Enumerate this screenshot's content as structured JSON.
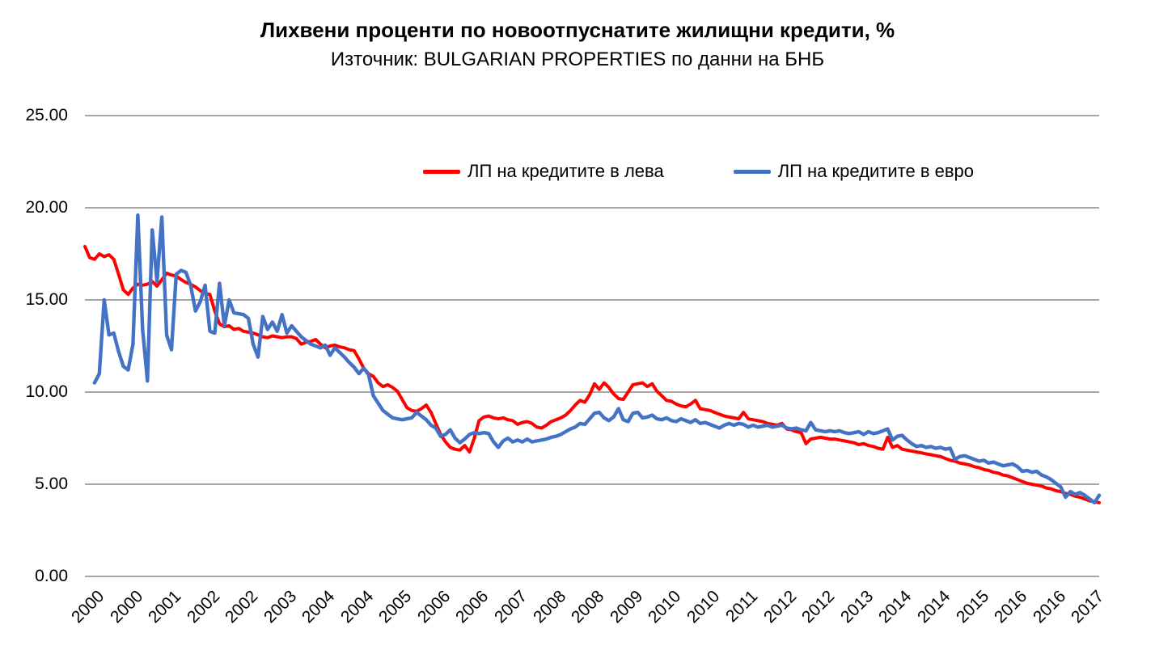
{
  "chart_data": {
    "type": "line",
    "title": "Лихвени проценти по новоотпуснатите жилищни кредити, %",
    "subtitle": "Източник: BULGARIAN PROPERTIES по данни на БНБ",
    "ylabel": "",
    "xlabel": "",
    "ylim": [
      0,
      25
    ],
    "y_tick_step": 5,
    "y_tick_labels": [
      "0.00",
      "5.00",
      "10.00",
      "15.00",
      "20.00",
      "25.00"
    ],
    "grid": "horizontal",
    "gridline_color": "#A6A6A6",
    "legend_position": "top-center",
    "x_start_month": "2000-01",
    "x_end_month": "2017-08",
    "x_tick_every_months": 8,
    "x_tick_labels": [
      "2000",
      "2000",
      "2001",
      "2002",
      "2002",
      "2003",
      "2004",
      "2004",
      "2005",
      "2006",
      "2006",
      "2007",
      "2008",
      "2008",
      "2009",
      "2010",
      "2010",
      "2011",
      "2012",
      "2012",
      "2013",
      "2014",
      "2014",
      "2015",
      "2016",
      "2016",
      "2017"
    ],
    "series": [
      {
        "name": "ЛП на кредитите в лева",
        "color": "#FF0000",
        "values": [
          17.9,
          17.3,
          17.2,
          17.5,
          17.35,
          17.45,
          17.2,
          16.4,
          15.55,
          15.3,
          15.65,
          15.85,
          15.8,
          15.85,
          16.0,
          15.75,
          16.1,
          16.45,
          16.35,
          16.3,
          16.1,
          15.95,
          15.85,
          15.7,
          15.5,
          15.35,
          15.3,
          14.4,
          13.7,
          13.55,
          13.6,
          13.4,
          13.45,
          13.3,
          13.25,
          13.2,
          13.1,
          13.0,
          12.95,
          13.05,
          13.0,
          12.95,
          13.0,
          13.0,
          12.9,
          12.6,
          12.7,
          12.75,
          12.85,
          12.6,
          12.4,
          12.5,
          12.55,
          12.45,
          12.4,
          12.3,
          12.25,
          11.8,
          11.3,
          11.0,
          10.85,
          10.5,
          10.3,
          10.4,
          10.25,
          10.05,
          9.6,
          9.15,
          9.0,
          8.95,
          9.1,
          9.3,
          8.9,
          8.3,
          7.7,
          7.3,
          7.0,
          6.9,
          6.85,
          7.1,
          6.75,
          7.5,
          8.45,
          8.65,
          8.7,
          8.6,
          8.55,
          8.6,
          8.5,
          8.45,
          8.25,
          8.35,
          8.4,
          8.3,
          8.1,
          8.05,
          8.2,
          8.4,
          8.5,
          8.6,
          8.75,
          9.0,
          9.3,
          9.55,
          9.45,
          9.85,
          10.45,
          10.15,
          10.5,
          10.25,
          9.9,
          9.65,
          9.6,
          10.0,
          10.4,
          10.45,
          10.5,
          10.3,
          10.45,
          10.05,
          9.8,
          9.55,
          9.5,
          9.35,
          9.25,
          9.2,
          9.35,
          9.55,
          9.1,
          9.05,
          9.0,
          8.9,
          8.8,
          8.7,
          8.65,
          8.6,
          8.55,
          8.9,
          8.55,
          8.5,
          8.45,
          8.4,
          8.3,
          8.25,
          8.2,
          8.3,
          8.0,
          7.95,
          7.85,
          7.8,
          7.2,
          7.45,
          7.5,
          7.55,
          7.5,
          7.45,
          7.45,
          7.4,
          7.35,
          7.3,
          7.25,
          7.15,
          7.2,
          7.1,
          7.05,
          6.95,
          6.9,
          7.55,
          7.0,
          7.1,
          6.9,
          6.85,
          6.8,
          6.75,
          6.7,
          6.65,
          6.6,
          6.55,
          6.5,
          6.4,
          6.3,
          6.25,
          6.15,
          6.1,
          6.05,
          5.95,
          5.9,
          5.8,
          5.75,
          5.65,
          5.6,
          5.5,
          5.45,
          5.35,
          5.25,
          5.15,
          5.05,
          5.0,
          4.95,
          4.9,
          4.8,
          4.75,
          4.65,
          4.6,
          4.5,
          4.45,
          4.35,
          4.3,
          4.2,
          4.1,
          4.05,
          4.0
        ]
      },
      {
        "name": "ЛП на кредитите в евро",
        "color": "#4472C4",
        "values": [
          null,
          null,
          10.5,
          11.0,
          15.0,
          13.1,
          13.2,
          12.2,
          11.4,
          11.2,
          12.6,
          19.6,
          13.4,
          10.6,
          18.8,
          16.0,
          19.5,
          13.1,
          12.3,
          16.4,
          16.6,
          16.5,
          15.8,
          14.4,
          14.9,
          15.8,
          13.3,
          13.2,
          15.9,
          13.6,
          15.0,
          14.3,
          14.25,
          14.2,
          14.0,
          12.6,
          11.9,
          14.1,
          13.4,
          13.8,
          13.3,
          14.2,
          13.2,
          13.6,
          13.3,
          13.0,
          12.8,
          12.6,
          12.5,
          12.4,
          12.55,
          12.0,
          12.4,
          12.15,
          11.9,
          11.6,
          11.35,
          11.0,
          11.3,
          10.95,
          9.8,
          9.4,
          9.0,
          8.8,
          8.6,
          8.55,
          8.5,
          8.55,
          8.6,
          8.9,
          8.7,
          8.5,
          8.2,
          8.05,
          7.6,
          7.7,
          7.95,
          7.5,
          7.25,
          7.45,
          7.7,
          7.8,
          7.75,
          7.8,
          7.75,
          7.3,
          7.0,
          7.35,
          7.5,
          7.3,
          7.4,
          7.3,
          7.45,
          7.3,
          7.35,
          7.4,
          7.45,
          7.55,
          7.6,
          7.7,
          7.85,
          8.0,
          8.1,
          8.3,
          8.25,
          8.55,
          8.85,
          8.9,
          8.6,
          8.45,
          8.65,
          9.1,
          8.5,
          8.4,
          8.85,
          8.9,
          8.6,
          8.65,
          8.75,
          8.55,
          8.5,
          8.6,
          8.45,
          8.4,
          8.55,
          8.45,
          8.35,
          8.5,
          8.3,
          8.35,
          8.25,
          8.15,
          8.05,
          8.2,
          8.3,
          8.2,
          8.3,
          8.25,
          8.1,
          8.2,
          8.1,
          8.15,
          8.2,
          8.1,
          8.15,
          8.2,
          8.05,
          8.0,
          8.05,
          7.95,
          7.9,
          8.35,
          7.95,
          7.9,
          7.85,
          7.9,
          7.85,
          7.9,
          7.8,
          7.75,
          7.8,
          7.85,
          7.7,
          7.85,
          7.75,
          7.8,
          7.9,
          8.0,
          7.4,
          7.6,
          7.65,
          7.4,
          7.2,
          7.05,
          7.1,
          7.0,
          7.05,
          6.95,
          7.0,
          6.9,
          6.95,
          6.35,
          6.5,
          6.55,
          6.45,
          6.35,
          6.25,
          6.3,
          6.15,
          6.2,
          6.1,
          6.0,
          6.05,
          6.1,
          5.95,
          5.7,
          5.75,
          5.65,
          5.7,
          5.5,
          5.4,
          5.25,
          5.05,
          4.85,
          4.3,
          4.6,
          4.45,
          4.55,
          4.4,
          4.2,
          4.0,
          4.4
        ]
      }
    ]
  }
}
